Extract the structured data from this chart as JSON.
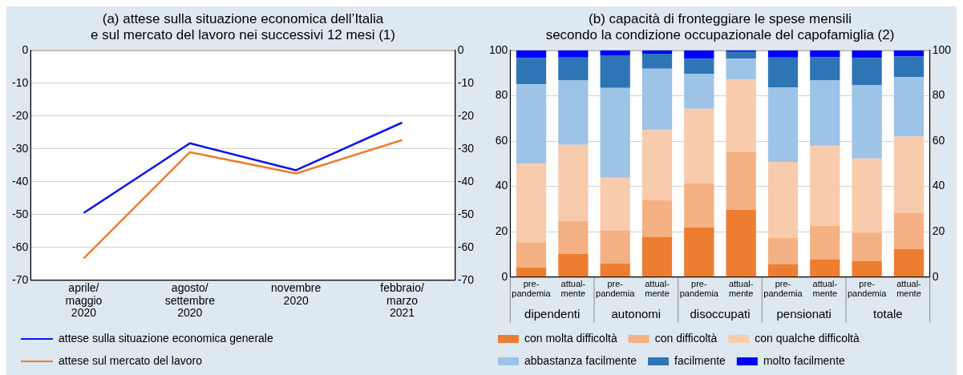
{
  "chart_data": [
    {
      "type": "line",
      "title": "(a) attese sulla situazione economica dell’Italia\ne sul mercato del lavoro nei successivi 12 mesi (1)",
      "categories": [
        "aprile/\nmaggio\n2020",
        "agosto/\nsettembre\n2020",
        "novembre\n2020",
        "febbraio/\nmarzo\n2021"
      ],
      "series": [
        {
          "name": "attese sulla situazione economica generale",
          "color": "#0a14f0",
          "values": [
            -49.5,
            -28.3,
            -36.5,
            -22
          ]
        },
        {
          "name": "attese sul mercato del lavoro",
          "color": "#ee7d31",
          "values": [
            -63.3,
            -31,
            -37.5,
            -27.3
          ]
        }
      ],
      "ylim": [
        -70,
        0
      ],
      "yticks": [
        -70,
        -60,
        -50,
        -40,
        -30,
        -20,
        -10,
        0
      ],
      "y2lim": [
        -70,
        0
      ],
      "y2ticks": [
        -70,
        -60,
        -50,
        -40,
        -30,
        -20,
        -10,
        0
      ],
      "grid": "y",
      "legend": "bottom",
      "marker": "none",
      "line_style": "solid"
    },
    {
      "type": "bar",
      "title": "(b) capacità di fronteggiare le spese mensili\nsecondo la condizione occupazionale del capofamiglia (2)",
      "categories": [
        "pre-\npandemia",
        "attual-\nmente",
        "pre-\npandemia",
        "attual-\nmente",
        "pre-\npandemia",
        "attual-\nmente",
        "pre-\npandemia",
        "attual-\nmente",
        "pre-\npandemia",
        "attual-\nmente"
      ],
      "stacked": true,
      "series": [
        {
          "name": "con molta difficoltà",
          "color": "#ed7d31",
          "values": [
            4.3,
            10.3,
            5.9,
            17.8,
            21.9,
            29.6,
            5.7,
            7.9,
            7,
            12.3
          ]
        },
        {
          "name": "con difficoltà",
          "color": "#f4b183",
          "values": [
            11.1,
            14.5,
            14.8,
            16.1,
            19.4,
            25.5,
            11.6,
            14.7,
            12.6,
            16.2
          ]
        },
        {
          "name": "con qualche difficoltà",
          "color": "#f8cbad",
          "values": [
            34.6,
            33.5,
            23.1,
            31,
            32.9,
            32,
            33.5,
            35.2,
            32.7,
            33.4
          ]
        },
        {
          "name": "abbastanza facilmente",
          "color": "#9dc3e6",
          "values": [
            35,
            28.4,
            39.6,
            27,
            15.5,
            9.2,
            32.8,
            28.9,
            32.3,
            26.3
          ]
        },
        {
          "name": "facilmente",
          "color": "#2e75b6",
          "values": [
            11.6,
            10.1,
            14.4,
            6.6,
            6.6,
            3,
            13.2,
            10.3,
            12.1,
            9.1
          ]
        },
        {
          "name": "molto facilmente",
          "color": "#0000ff",
          "values": [
            3.4,
            3.2,
            2.2,
            1.5,
            3.7,
            0.7,
            3.2,
            3,
            3.3,
            2.7
          ]
        }
      ],
      "annotations": [
        "dipendenti",
        "autonomi",
        "disoccupati",
        "pensionati",
        "totale"
      ],
      "ylim": [
        0,
        100
      ],
      "yticks": [
        0,
        20,
        40,
        60,
        80,
        100
      ],
      "y2lim": [
        0,
        100
      ],
      "y2ticks": [
        0,
        20,
        40,
        60,
        80,
        100
      ],
      "grid": "y",
      "legend": "bottom"
    }
  ]
}
